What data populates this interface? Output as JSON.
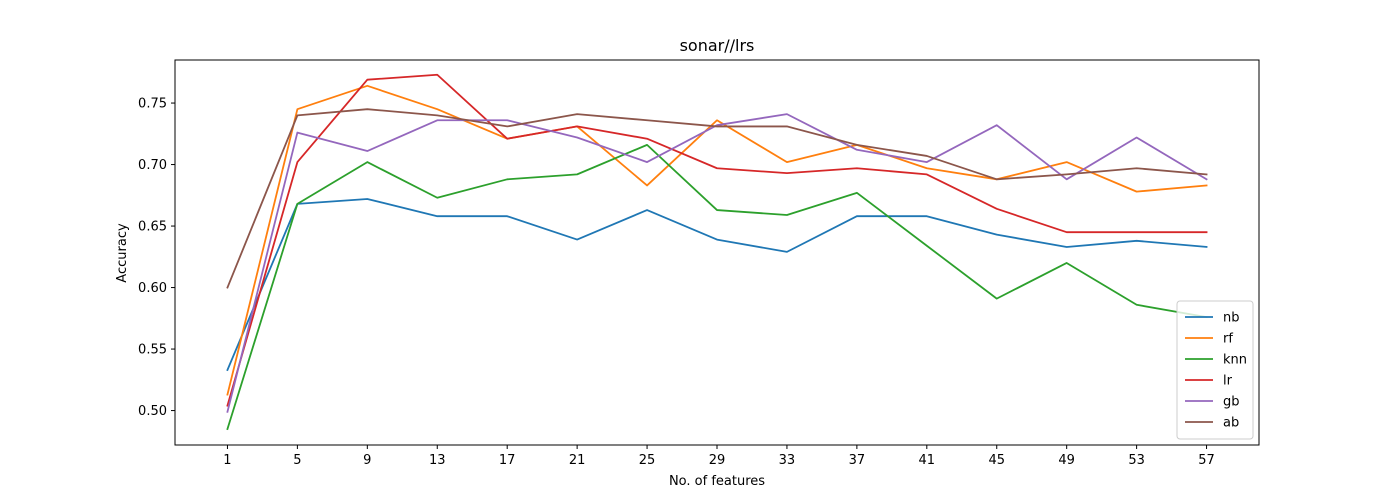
{
  "chart_data": {
    "type": "line",
    "title": "sonar//lrs",
    "xlabel": "No. of features",
    "ylabel": "Accuracy",
    "x": [
      1,
      5,
      9,
      13,
      17,
      21,
      25,
      29,
      33,
      37,
      41,
      45,
      49,
      53,
      57
    ],
    "xlim": [
      -2,
      60
    ],
    "ylim": [
      0.472,
      0.785
    ],
    "yticks": [
      0.5,
      0.55,
      0.6,
      0.65,
      0.7,
      0.75
    ],
    "ytick_labels": [
      "0.50",
      "0.55",
      "0.60",
      "0.65",
      "0.70",
      "0.75"
    ],
    "grid": false,
    "legend_position": "lower-right",
    "series": [
      {
        "name": "nb",
        "color": "#1f77b4",
        "values": [
          0.533,
          0.668,
          0.672,
          0.658,
          0.658,
          0.639,
          0.663,
          0.639,
          0.629,
          0.658,
          0.658,
          0.643,
          0.633,
          0.638,
          0.633
        ]
      },
      {
        "name": "rf",
        "color": "#ff7f0e",
        "values": [
          0.513,
          0.745,
          0.764,
          0.745,
          0.721,
          0.731,
          0.683,
          0.736,
          0.702,
          0.716,
          0.697,
          0.688,
          0.702,
          0.678,
          0.683
        ]
      },
      {
        "name": "knn",
        "color": "#2ca02c",
        "values": [
          0.485,
          0.668,
          0.702,
          0.673,
          0.688,
          0.692,
          0.716,
          0.663,
          0.659,
          0.677,
          0.634,
          0.591,
          0.62,
          0.586,
          0.576
        ]
      },
      {
        "name": "lr",
        "color": "#d62728",
        "values": [
          0.504,
          0.702,
          0.769,
          0.773,
          0.721,
          0.731,
          0.721,
          0.697,
          0.693,
          0.697,
          0.692,
          0.664,
          0.645,
          0.645,
          0.645
        ]
      },
      {
        "name": "gb",
        "color": "#9467bd",
        "values": [
          0.499,
          0.726,
          0.711,
          0.736,
          0.736,
          0.722,
          0.702,
          0.732,
          0.741,
          0.712,
          0.702,
          0.732,
          0.688,
          0.722,
          0.688
        ]
      },
      {
        "name": "ab",
        "color": "#8c564b",
        "values": [
          0.6,
          0.74,
          0.745,
          0.74,
          0.731,
          0.741,
          0.736,
          0.731,
          0.731,
          0.716,
          0.707,
          0.688,
          0.692,
          0.697,
          0.692
        ]
      }
    ]
  }
}
